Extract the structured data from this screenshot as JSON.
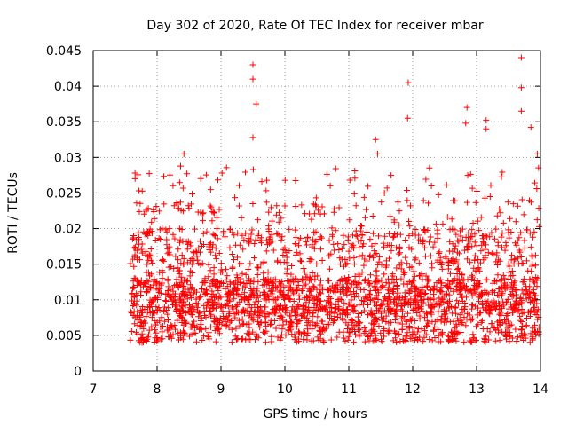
{
  "chart_data": {
    "type": "scatter",
    "title": "Day 302 of 2020, Rate Of TEC Index for receiver mbar",
    "xlabel": "GPS time / hours",
    "ylabel": "ROTI / TECUs",
    "xlim": [
      7,
      14
    ],
    "ylim": [
      0,
      0.045
    ],
    "x_ticks": [
      7,
      8,
      9,
      10,
      11,
      12,
      13,
      14
    ],
    "y_ticks": [
      0,
      0.005,
      0.01,
      0.015,
      0.02,
      0.025,
      0.03,
      0.035,
      0.04,
      0.045
    ],
    "x_tick_labels": [
      "7",
      "8",
      "9",
      "10",
      "11",
      "12",
      "13",
      "14"
    ],
    "y_tick_labels": [
      "0",
      "0.005",
      "0.01",
      "0.015",
      "0.02",
      "0.025",
      "0.03",
      "0.035",
      "0.04",
      "0.045"
    ],
    "grid": true,
    "marker": "+",
    "color": "#ff0000",
    "x_range_of_points": [
      7.58,
      13.98
    ],
    "notable_points": [
      {
        "x": 8.42,
        "y": 0.0305
      },
      {
        "x": 9.5,
        "y": 0.043
      },
      {
        "x": 9.5,
        "y": 0.041
      },
      {
        "x": 9.55,
        "y": 0.0375
      },
      {
        "x": 9.5,
        "y": 0.0328
      },
      {
        "x": 11.42,
        "y": 0.0325
      },
      {
        "x": 11.45,
        "y": 0.0305
      },
      {
        "x": 11.93,
        "y": 0.0405
      },
      {
        "x": 11.92,
        "y": 0.0355
      },
      {
        "x": 12.85,
        "y": 0.037
      },
      {
        "x": 12.83,
        "y": 0.0348
      },
      {
        "x": 13.15,
        "y": 0.0352
      },
      {
        "x": 13.15,
        "y": 0.034
      },
      {
        "x": 13.7,
        "y": 0.044
      },
      {
        "x": 13.7,
        "y": 0.0398
      },
      {
        "x": 13.7,
        "y": 0.0365
      },
      {
        "x": 13.85,
        "y": 0.0342
      },
      {
        "x": 13.95,
        "y": 0.0305
      }
    ]
  }
}
